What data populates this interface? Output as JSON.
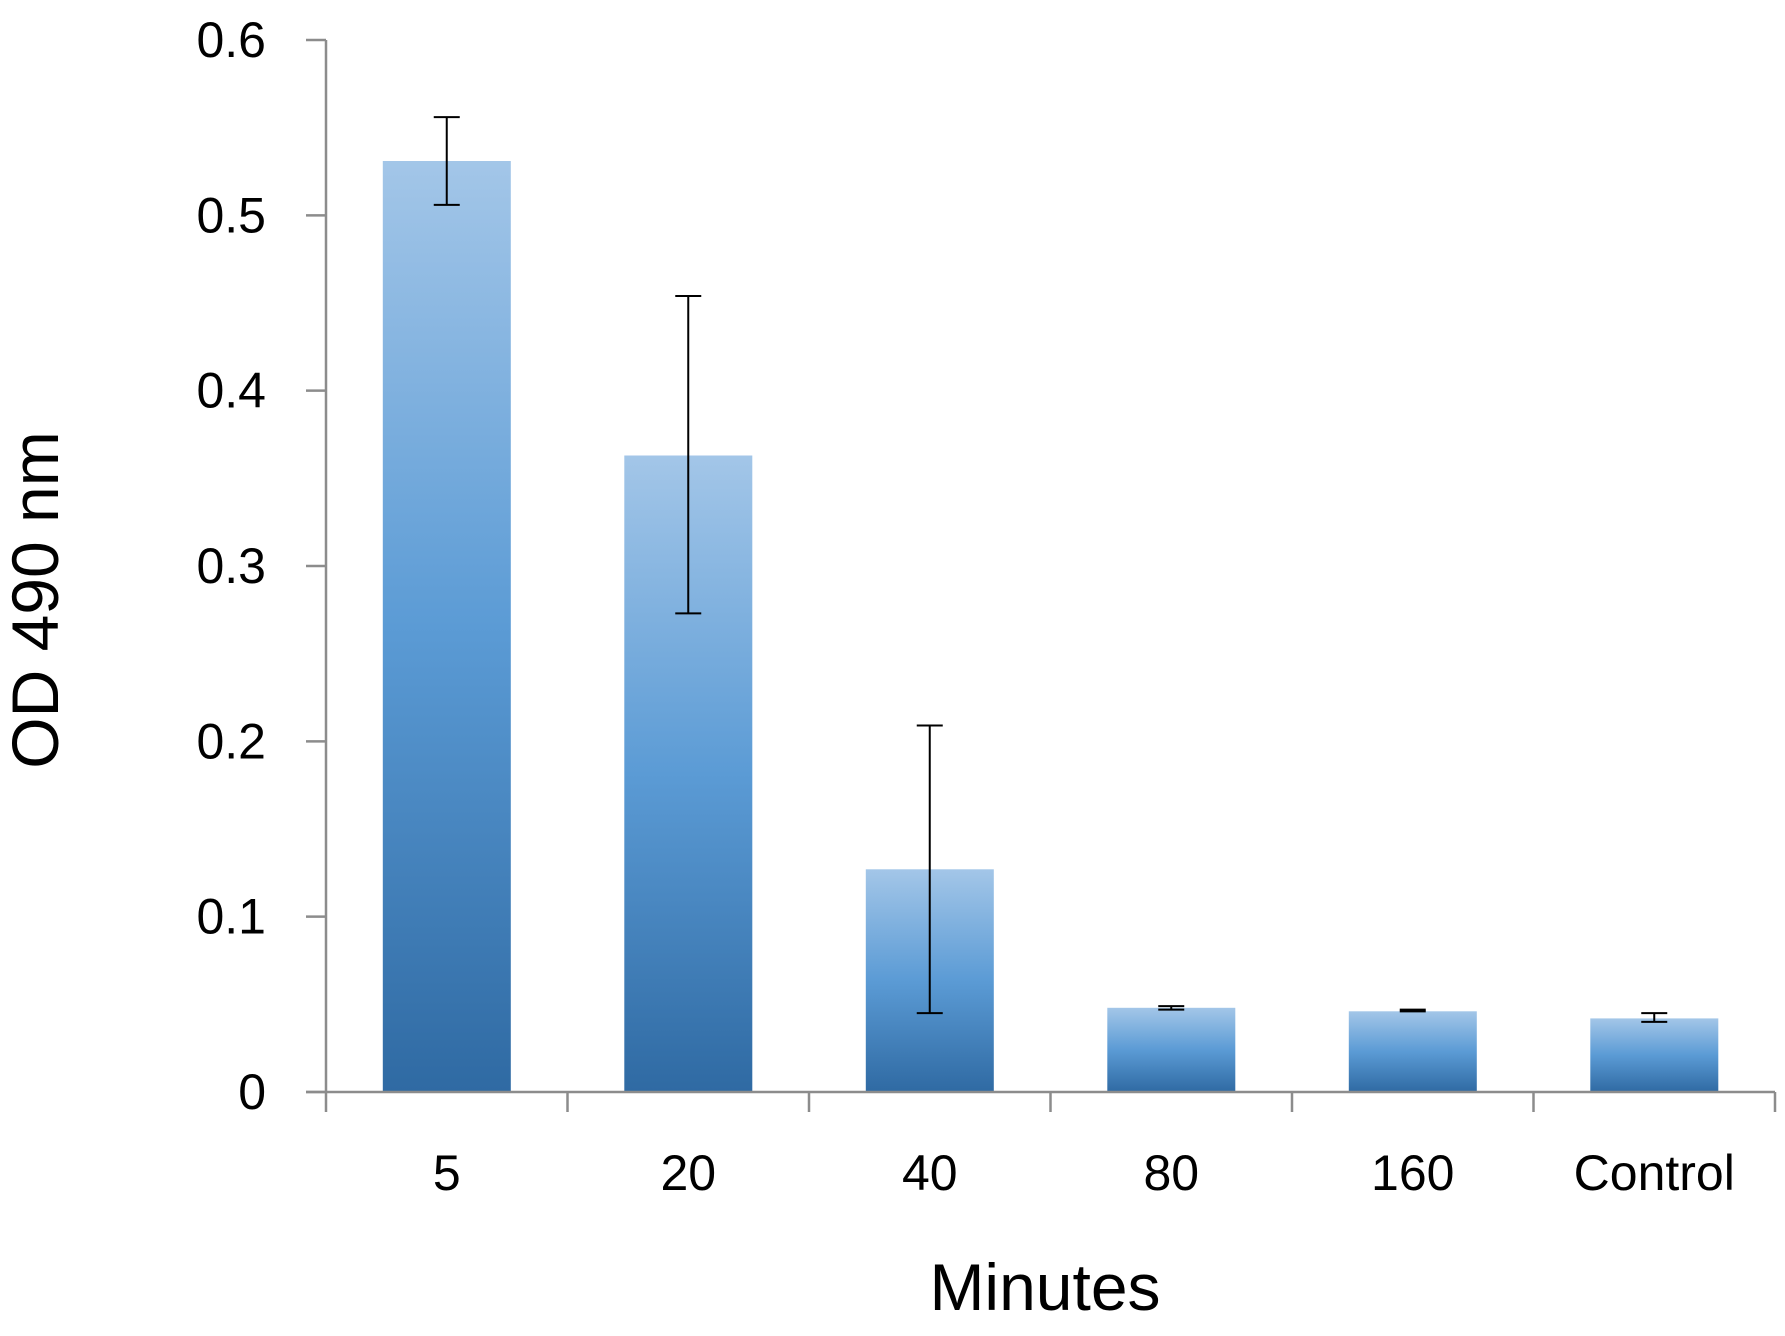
{
  "chart_data": {
    "type": "bar",
    "title": "",
    "xlabel": "Minutes",
    "ylabel": "OD 490 nm",
    "categories": [
      "5",
      "20",
      "40",
      "80",
      "160",
      "Control"
    ],
    "values": [
      0.531,
      0.363,
      0.127,
      0.048,
      0.046,
      0.042
    ],
    "error_low": [
      0.506,
      0.273,
      0.045,
      0.047,
      0.046,
      0.04
    ],
    "error_high": [
      0.556,
      0.454,
      0.209,
      0.049,
      0.047,
      0.045
    ],
    "ylim": [
      0,
      0.6
    ],
    "yticks": [
      "0",
      "0.1",
      "0.2",
      "0.3",
      "0.4",
      "0.5",
      "0.6"
    ],
    "ytick_values": [
      0,
      0.1,
      0.2,
      0.3,
      0.4,
      0.5,
      0.6
    ],
    "grid": false,
    "legend": "none",
    "colors": {
      "bar_top": "#a3c6e8",
      "bar_mid": "#5b9bd5",
      "bar_bottom": "#2f6aa3",
      "axis": "#8c8c8c",
      "error": "#000000"
    }
  }
}
